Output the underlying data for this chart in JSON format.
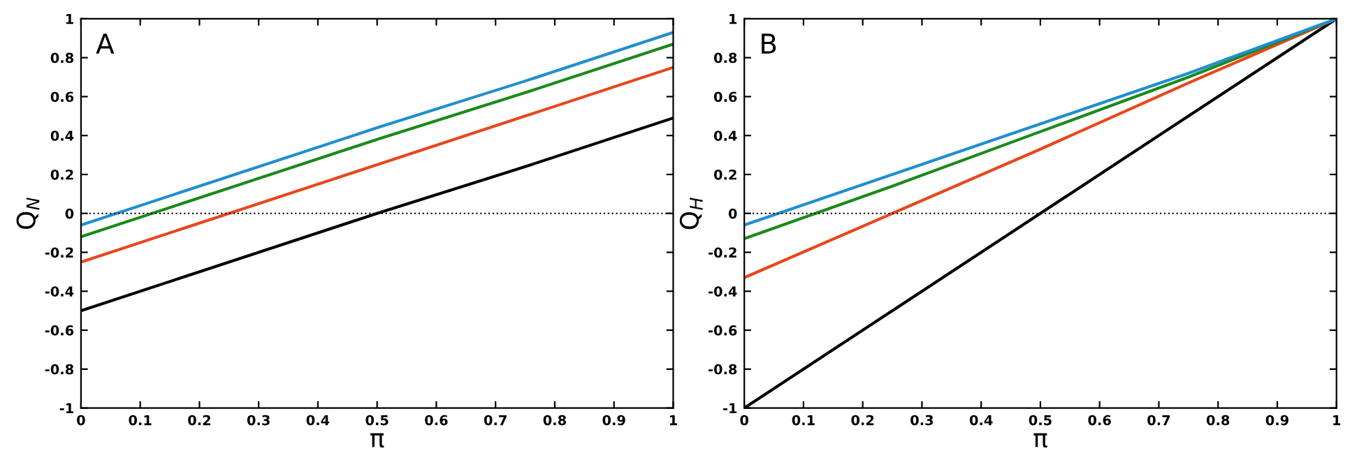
{
  "chart_data": [
    {
      "type": "line",
      "xlabel": "π",
      "ylabel": "Q$_{N}$",
      "annotations": [
        "A"
      ],
      "xlim": [
        0,
        1
      ],
      "ylim": [
        -1,
        1
      ],
      "xticks": [
        0,
        0.1,
        0.2,
        0.3,
        0.4,
        0.5,
        0.6,
        0.7,
        0.8,
        0.9,
        1
      ],
      "yticks": [
        -1,
        -0.8,
        -0.6,
        -0.4,
        -0.2,
        0,
        0.2,
        0.4,
        0.6,
        0.8,
        1
      ],
      "grid": false,
      "legend": false,
      "line_style": "solid",
      "ref_lines": [
        {
          "axis": "y",
          "value": 0,
          "color": "#000000",
          "line_style": "dotted"
        }
      ],
      "x": [
        0,
        0.25,
        0.5,
        0.75,
        1
      ],
      "series": [
        {
          "color": "#000000",
          "values": [
            -0.5,
            -0.25,
            0,
            0.24,
            0.49
          ]
        },
        {
          "color": "#e8471c",
          "values": [
            -0.25,
            0,
            0.25,
            0.5,
            0.75
          ]
        },
        {
          "color": "#1a8a1a",
          "values": [
            -0.12,
            0.13,
            0.38,
            0.62,
            0.87
          ]
        },
        {
          "color": "#1f8fd0",
          "values": [
            -0.06,
            0.19,
            0.44,
            0.68,
            0.93
          ]
        }
      ]
    },
    {
      "type": "line",
      "xlabel": "π",
      "ylabel": "Q$_{H}$",
      "annotations": [
        "B"
      ],
      "xlim": [
        0,
        1
      ],
      "ylim": [
        -1,
        1
      ],
      "xticks": [
        0,
        0.1,
        0.2,
        0.3,
        0.4,
        0.5,
        0.6,
        0.7,
        0.8,
        0.9,
        1
      ],
      "yticks": [
        -1,
        -0.8,
        -0.6,
        -0.4,
        -0.2,
        0,
        0.2,
        0.4,
        0.6,
        0.8,
        1
      ],
      "grid": false,
      "legend": false,
      "line_style": "solid",
      "ref_lines": [
        {
          "axis": "y",
          "value": 0,
          "color": "#000000",
          "line_style": "dotted"
        }
      ],
      "x": [
        0,
        0.25,
        0.5,
        0.75,
        1
      ],
      "series": [
        {
          "color": "#000000",
          "values": [
            -1,
            -0.5,
            0,
            0.5,
            1
          ]
        },
        {
          "color": "#e8471c",
          "values": [
            -0.33,
            0,
            0.33,
            0.67,
            1
          ]
        },
        {
          "color": "#1a8a1a",
          "values": [
            -0.13,
            0.14,
            0.42,
            0.7,
            1
          ]
        },
        {
          "color": "#1f8fd0",
          "values": [
            -0.06,
            0.2,
            0.46,
            0.72,
            1
          ]
        }
      ]
    }
  ]
}
